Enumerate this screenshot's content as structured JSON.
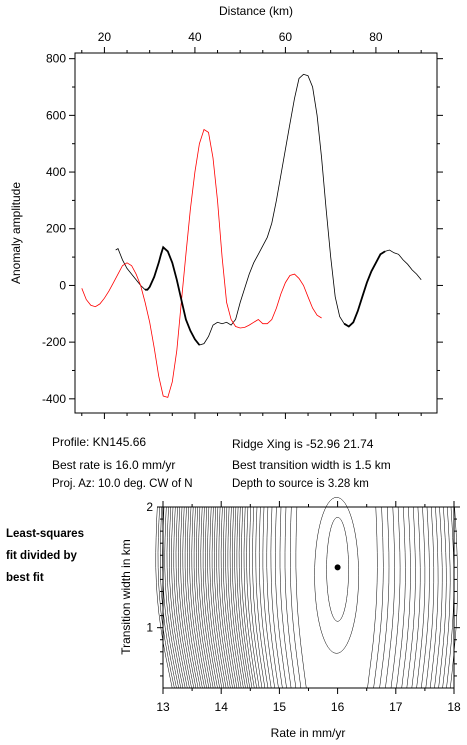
{
  "info": {
    "profile": "Profile: KN145.66",
    "best_rate": "Best rate is 16.0 mm/yr",
    "proj_az": "Proj. Az: 10.0 deg. CW of N",
    "ridge_xing": "Ridge Xing is -52.96 21.74",
    "best_width": "Best transition width is 1.5 km",
    "depth": "Depth to source is   3.28 km"
  },
  "side_note": [
    "Least-squares",
    "fit divided by",
    "best fit"
  ],
  "chart_data": [
    {
      "type": "line",
      "xlabel": "Distance (km)",
      "ylabel": "Anomaly amplitude",
      "xlim": [
        13.5,
        93.5
      ],
      "ylim": [
        -450,
        820
      ],
      "x_ticks": [
        20,
        40,
        60,
        80
      ],
      "y_ticks": [
        -400,
        -200,
        0,
        200,
        400,
        600,
        800
      ],
      "x_axis_position": "top",
      "grid": false,
      "series": [
        {
          "color": "#000000",
          "points": [
            [
              22.5,
              125
            ],
            [
              23,
              130
            ],
            [
              24,
              90
            ],
            [
              25,
              60
            ],
            [
              26,
              40
            ],
            [
              27,
              20
            ],
            [
              28,
              0
            ],
            [
              29,
              -15
            ],
            [
              29.5,
              -15
            ],
            [
              30,
              -5
            ],
            [
              31,
              30
            ],
            [
              32,
              80
            ],
            [
              32.5,
              110
            ],
            [
              33,
              135
            ],
            [
              34,
              120
            ],
            [
              35,
              80
            ],
            [
              36,
              20
            ],
            [
              37,
              -50
            ],
            [
              38,
              -120
            ],
            [
              39,
              -160
            ],
            [
              40,
              -190
            ],
            [
              41,
              -210
            ],
            [
              42,
              -205
            ],
            [
              43,
              -180
            ],
            [
              44,
              -140
            ],
            [
              45,
              -130
            ],
            [
              46,
              -135
            ],
            [
              47,
              -130
            ],
            [
              48,
              -140
            ],
            [
              49,
              -120
            ],
            [
              50,
              -60
            ],
            [
              51,
              -10
            ],
            [
              52,
              40
            ],
            [
              53,
              80
            ],
            [
              54,
              110
            ],
            [
              55,
              140
            ],
            [
              56,
              170
            ],
            [
              57,
              220
            ],
            [
              58,
              300
            ],
            [
              59,
              390
            ],
            [
              60,
              480
            ],
            [
              61,
              570
            ],
            [
              62,
              660
            ],
            [
              63,
              730
            ],
            [
              64,
              745
            ],
            [
              65,
              740
            ],
            [
              66,
              700
            ],
            [
              67,
              600
            ],
            [
              68,
              450
            ],
            [
              69,
              270
            ],
            [
              70,
              100
            ],
            [
              71,
              -40
            ],
            [
              72,
              -110
            ],
            [
              73,
              -135
            ],
            [
              74,
              -145
            ],
            [
              75,
              -130
            ],
            [
              76,
              -90
            ],
            [
              77,
              -40
            ],
            [
              78,
              10
            ],
            [
              79,
              50
            ],
            [
              80,
              80
            ],
            [
              81,
              110
            ],
            [
              82,
              120
            ],
            [
              83,
              125
            ],
            [
              84,
              115
            ],
            [
              85,
              110
            ],
            [
              86,
              90
            ],
            [
              87,
              75
            ],
            [
              88,
              55
            ],
            [
              89,
              40
            ],
            [
              90,
              20
            ]
          ]
        },
        {
          "color": "#ff0000",
          "points": [
            [
              15,
              -10
            ],
            [
              16,
              -50
            ],
            [
              17,
              -70
            ],
            [
              18,
              -75
            ],
            [
              19,
              -65
            ],
            [
              20,
              -45
            ],
            [
              21,
              -20
            ],
            [
              22,
              10
            ],
            [
              23,
              40
            ],
            [
              24,
              70
            ],
            [
              25,
              80
            ],
            [
              26,
              70
            ],
            [
              27,
              40
            ],
            [
              28,
              0
            ],
            [
              29,
              -60
            ],
            [
              30,
              -130
            ],
            [
              31,
              -220
            ],
            [
              32,
              -320
            ],
            [
              33,
              -390
            ],
            [
              34,
              -395
            ],
            [
              35,
              -340
            ],
            [
              36,
              -230
            ],
            [
              37,
              -60
            ],
            [
              38,
              110
            ],
            [
              39,
              270
            ],
            [
              40,
              400
            ],
            [
              41,
              500
            ],
            [
              42,
              550
            ],
            [
              43,
              540
            ],
            [
              44,
              450
            ],
            [
              45,
              300
            ],
            [
              46,
              100
            ],
            [
              47,
              -60
            ],
            [
              48,
              -120
            ],
            [
              49,
              -145
            ],
            [
              50,
              -150
            ],
            [
              51,
              -148
            ],
            [
              52,
              -140
            ],
            [
              53,
              -130
            ],
            [
              54,
              -120
            ],
            [
              55,
              -135
            ],
            [
              56,
              -135
            ],
            [
              57,
              -120
            ],
            [
              58,
              -80
            ],
            [
              59,
              -30
            ],
            [
              60,
              10
            ],
            [
              61,
              35
            ],
            [
              62,
              40
            ],
            [
              63,
              25
            ],
            [
              64,
              0
            ],
            [
              65,
              -40
            ],
            [
              66,
              -80
            ],
            [
              67,
              -105
            ],
            [
              68,
              -115
            ]
          ]
        }
      ]
    },
    {
      "type": "contour",
      "xlabel": "Rate in mm/yr",
      "ylabel": "Transition width in km",
      "xlim": [
        13,
        18
      ],
      "ylim": [
        0.5,
        2
      ],
      "x_ticks": [
        13,
        14,
        15,
        16,
        17,
        18
      ],
      "y_ticks": [
        1,
        2
      ],
      "best_fit": {
        "rate": 16.0,
        "width": 1.5
      }
    }
  ]
}
